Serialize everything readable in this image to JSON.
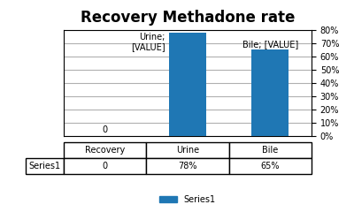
{
  "chart_data": {
    "type": "bar",
    "title": "Recovery Methadone rate",
    "categories": [
      "Recovery",
      "Urine",
      "Bile"
    ],
    "series": [
      {
        "name": "Series1",
        "values": [
          0,
          0.78,
          0.65
        ]
      }
    ],
    "ylim": [
      0,
      0.8
    ],
    "yticks": [
      {
        "value": 0.0,
        "label": "0%"
      },
      {
        "value": 0.1,
        "label": "10%"
      },
      {
        "value": 0.2,
        "label": "20%"
      },
      {
        "value": 0.3,
        "label": "30%"
      },
      {
        "value": 0.4,
        "label": "40%"
      },
      {
        "value": 0.5,
        "label": "50%"
      },
      {
        "value": 0.6,
        "label": "60%"
      },
      {
        "value": 0.7,
        "label": "70%"
      },
      {
        "value": 0.8,
        "label": "80%"
      }
    ],
    "grid": true,
    "legend": "lower center",
    "tick_labels": "y",
    "annotations": [
      {
        "category": "Recovery",
        "text": "0"
      },
      {
        "category": "Urine",
        "text": "Urine;\n[VALUE]"
      },
      {
        "category": "Bile",
        "text": "Bile; [VALUE]"
      }
    ],
    "table": {
      "row_label": "Series1",
      "values": [
        "0",
        "78%",
        "65%"
      ]
    }
  }
}
